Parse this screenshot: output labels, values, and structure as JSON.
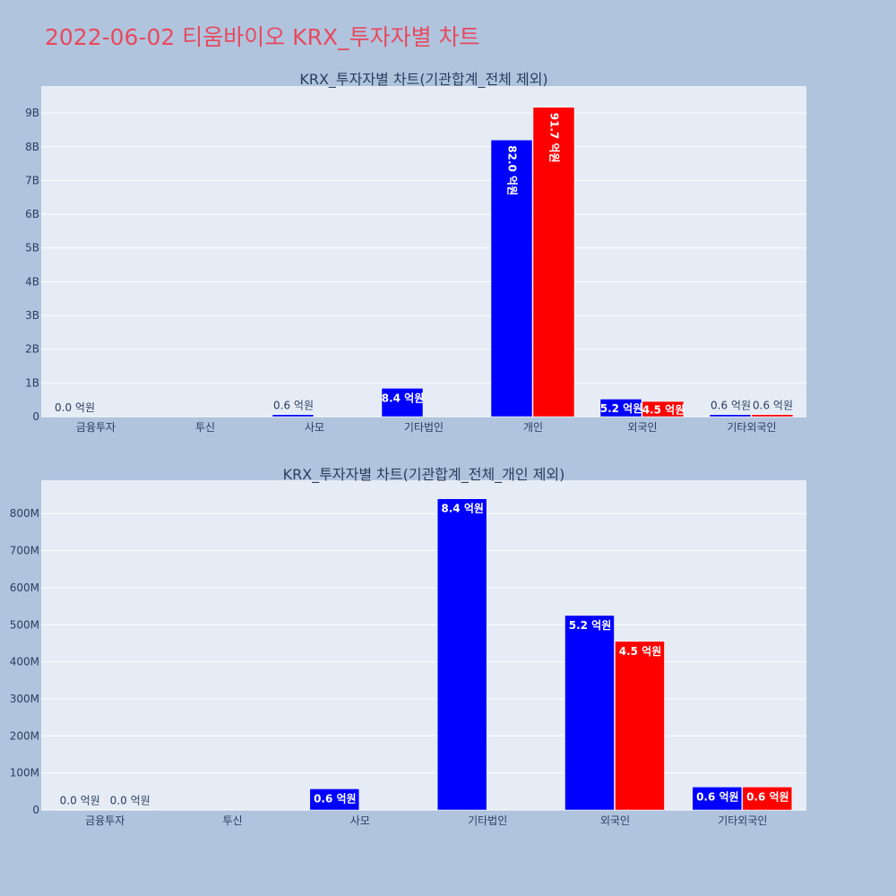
{
  "title": "2022-06-02 티움바이오 KRX_투자자별 차트",
  "colors": {
    "buy": "#0000ff",
    "sell": "#ff0000",
    "plot_bg": "#e5ecf6",
    "page_bg": "#b0c4de",
    "title": "#e8495e"
  },
  "chart_data": [
    {
      "type": "bar",
      "title": "KRX_투자자별 차트(기관합계_전체 제외)",
      "categories": [
        "금융투자",
        "투신",
        "사모",
        "기타법인",
        "개인",
        "외국인",
        "기타외국인"
      ],
      "series": [
        {
          "color": "#0000ff",
          "values": [
            1000000,
            0,
            60000000,
            840000000,
            8200000000,
            520000000,
            60000000
          ],
          "labels": [
            "0.0 억원",
            "",
            "0.6 억원",
            "8.4 억원",
            "82.0 억원",
            "5.2 억원",
            "0.6 억원"
          ]
        },
        {
          "color": "#ff0000",
          "values": [
            0,
            0,
            0,
            0,
            9170000000,
            450000000,
            60000000
          ],
          "labels": [
            "",
            "",
            "",
            "",
            "91.7 억원",
            "4.5 억원",
            "0.6 억원"
          ]
        }
      ],
      "yticks": [
        0,
        1000000000,
        2000000000,
        3000000000,
        4000000000,
        5000000000,
        6000000000,
        7000000000,
        8000000000,
        9000000000
      ],
      "ytick_labels": [
        "0",
        "1B",
        "2B",
        "3B",
        "4B",
        "5B",
        "6B",
        "7B",
        "8B",
        "9B"
      ],
      "ylim": [
        0,
        9800000000
      ],
      "grid": true,
      "legend": "none"
    },
    {
      "type": "bar",
      "title": "KRX_투자자별 차트(기관합계_전체_개인 제외)",
      "categories": [
        "금융투자",
        "투신",
        "사모",
        "기타법인",
        "외국인",
        "기타외국인"
      ],
      "series": [
        {
          "color": "#0000ff",
          "values": [
            1000000,
            0,
            57000000,
            840000000,
            525000000,
            62000000
          ],
          "labels": [
            "0.0 억원",
            "",
            "0.6 억원",
            "8.4 억원",
            "5.2 억원",
            "0.6 억원"
          ]
        },
        {
          "color": "#ff0000",
          "values": [
            1000000,
            0,
            0,
            0,
            455000000,
            62000000
          ],
          "labels": [
            "0.0 억원",
            "",
            "",
            "",
            "4.5 억원",
            "0.6 억원"
          ]
        }
      ],
      "yticks": [
        0,
        100000000,
        200000000,
        300000000,
        400000000,
        500000000,
        600000000,
        700000000,
        800000000
      ],
      "ytick_labels": [
        "0",
        "100M",
        "200M",
        "300M",
        "400M",
        "500M",
        "600M",
        "700M",
        "800M"
      ],
      "ylim": [
        0,
        890000000
      ],
      "grid": true,
      "legend": "none"
    }
  ]
}
